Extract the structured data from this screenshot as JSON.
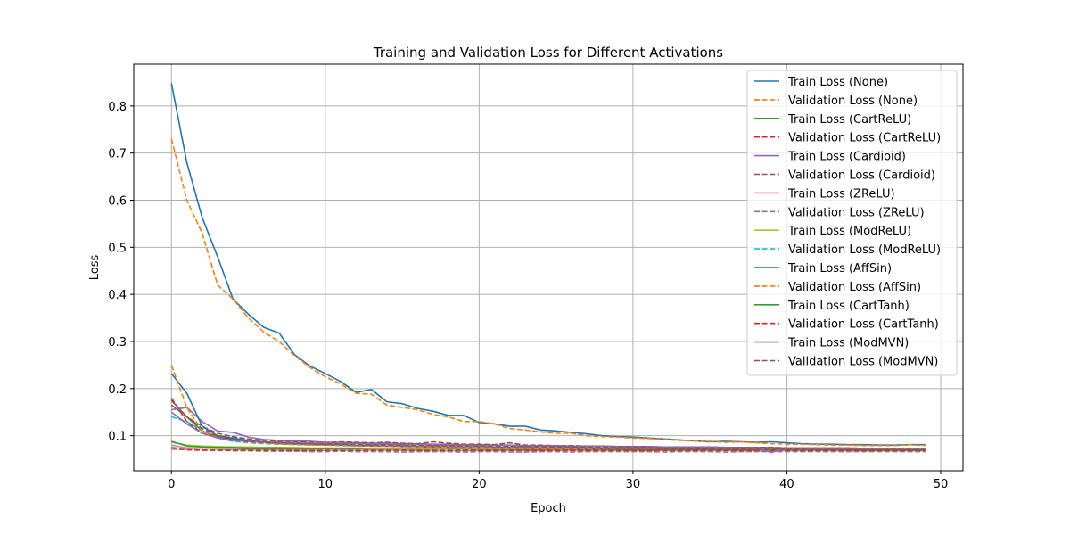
{
  "chart_data": {
    "type": "line",
    "title": "Training and Validation Loss for Different Activations",
    "xlabel": "Epoch",
    "ylabel": "Loss",
    "xlim": [
      -2.45,
      51.45
    ],
    "ylim": [
      0.0255,
      0.8887
    ],
    "xticks": [
      0,
      10,
      20,
      30,
      40,
      50
    ],
    "xtick_labels": [
      "0",
      "10",
      "20",
      "30",
      "40",
      "50"
    ],
    "yticks": [
      0.1,
      0.2,
      0.3,
      0.4,
      0.5,
      0.6,
      0.7,
      0.8
    ],
    "ytick_labels": [
      "0.1",
      "0.2",
      "0.3",
      "0.4",
      "0.5",
      "0.6",
      "0.7",
      "0.8"
    ],
    "grid": true,
    "legend_position": "upper right",
    "series": [
      {
        "name": "Train Loss (None)",
        "color": "#1f77b4",
        "dash": "solid",
        "values": [
          0.848,
          0.68,
          0.563,
          0.48,
          0.39,
          0.358,
          0.33,
          0.318,
          0.272,
          0.248,
          0.232,
          0.215,
          0.192,
          0.198,
          0.172,
          0.168,
          0.158,
          0.152,
          0.143,
          0.143,
          0.128,
          0.125,
          0.12,
          0.12,
          0.112,
          0.11,
          0.107,
          0.104,
          0.1,
          0.098,
          0.097,
          0.095,
          0.093,
          0.091,
          0.089,
          0.087,
          0.088,
          0.087,
          0.086,
          0.087,
          0.085,
          0.083,
          0.082,
          0.082,
          0.081,
          0.081,
          0.08,
          0.08,
          0.081,
          0.081
        ]
      },
      {
        "name": "Validation Loss (None)",
        "color": "#ff7f0e",
        "dash": "dashed",
        "values": [
          0.73,
          0.6,
          0.53,
          0.42,
          0.39,
          0.35,
          0.32,
          0.3,
          0.27,
          0.245,
          0.225,
          0.21,
          0.19,
          0.188,
          0.165,
          0.16,
          0.155,
          0.145,
          0.14,
          0.13,
          0.13,
          0.125,
          0.115,
          0.112,
          0.108,
          0.105,
          0.105,
          0.1,
          0.098,
          0.097,
          0.095,
          0.094,
          0.092,
          0.09,
          0.089,
          0.088,
          0.086,
          0.087,
          0.085,
          0.083,
          0.082,
          0.082,
          0.081,
          0.08,
          0.08,
          0.079,
          0.079,
          0.079,
          0.081,
          0.079
        ]
      },
      {
        "name": "Train Loss (CartReLU)",
        "color": "#2ca02c",
        "dash": "solid",
        "values": [
          0.175,
          0.14,
          0.11,
          0.098,
          0.093,
          0.09,
          0.087,
          0.085,
          0.083,
          0.082,
          0.08,
          0.08,
          0.079,
          0.078,
          0.078,
          0.077,
          0.077,
          0.076,
          0.076,
          0.076,
          0.075,
          0.075,
          0.075,
          0.074,
          0.074,
          0.074,
          0.074,
          0.073,
          0.073,
          0.073,
          0.073,
          0.072,
          0.072,
          0.072,
          0.072,
          0.072,
          0.071,
          0.071,
          0.071,
          0.071,
          0.071,
          0.071,
          0.07,
          0.07,
          0.07,
          0.07,
          0.07,
          0.07,
          0.07,
          0.07
        ]
      },
      {
        "name": "Validation Loss (CartReLU)",
        "color": "#d62728",
        "dash": "dashed",
        "values": [
          0.18,
          0.13,
          0.105,
          0.1,
          0.09,
          0.088,
          0.086,
          0.083,
          0.082,
          0.081,
          0.08,
          0.08,
          0.079,
          0.078,
          0.078,
          0.077,
          0.077,
          0.076,
          0.076,
          0.076,
          0.075,
          0.075,
          0.075,
          0.075,
          0.074,
          0.074,
          0.074,
          0.073,
          0.073,
          0.073,
          0.073,
          0.072,
          0.072,
          0.072,
          0.072,
          0.072,
          0.071,
          0.071,
          0.071,
          0.071,
          0.071,
          0.071,
          0.071,
          0.07,
          0.07,
          0.07,
          0.07,
          0.07,
          0.07,
          0.07
        ]
      },
      {
        "name": "Train Loss (Cardioid)",
        "color": "#9467bd",
        "dash": "solid",
        "values": [
          0.155,
          0.16,
          0.13,
          0.11,
          0.107,
          0.097,
          0.092,
          0.09,
          0.089,
          0.088,
          0.086,
          0.086,
          0.085,
          0.084,
          0.084,
          0.083,
          0.083,
          0.082,
          0.082,
          0.081,
          0.081,
          0.08,
          0.08,
          0.079,
          0.079,
          0.079,
          0.078,
          0.078,
          0.078,
          0.077,
          0.077,
          0.077,
          0.076,
          0.076,
          0.076,
          0.076,
          0.075,
          0.075,
          0.075,
          0.075,
          0.074,
          0.074,
          0.074,
          0.074,
          0.074,
          0.073,
          0.073,
          0.073,
          0.073,
          0.073
        ]
      },
      {
        "name": "Validation Loss (Cardioid)",
        "color": "#8c564b",
        "dash": "dashed",
        "values": [
          0.165,
          0.14,
          0.12,
          0.105,
          0.098,
          0.093,
          0.09,
          0.088,
          0.087,
          0.086,
          0.085,
          0.087,
          0.086,
          0.085,
          0.086,
          0.084,
          0.083,
          0.087,
          0.084,
          0.082,
          0.082,
          0.081,
          0.085,
          0.08,
          0.08,
          0.079,
          0.079,
          0.078,
          0.078,
          0.077,
          0.077,
          0.077,
          0.076,
          0.076,
          0.076,
          0.076,
          0.075,
          0.075,
          0.075,
          0.075,
          0.074,
          0.074,
          0.074,
          0.074,
          0.074,
          0.073,
          0.073,
          0.073,
          0.073,
          0.073
        ]
      },
      {
        "name": "Train Loss (ZReLU)",
        "color": "#e377c2",
        "dash": "solid",
        "values": [
          0.08,
          0.074,
          0.072,
          0.071,
          0.07,
          0.07,
          0.07,
          0.069,
          0.069,
          0.069,
          0.069,
          0.069,
          0.069,
          0.069,
          0.069,
          0.069,
          0.069,
          0.068,
          0.068,
          0.068,
          0.068,
          0.068,
          0.068,
          0.068,
          0.068,
          0.068,
          0.068,
          0.068,
          0.068,
          0.068,
          0.068,
          0.068,
          0.068,
          0.068,
          0.068,
          0.068,
          0.068,
          0.068,
          0.068,
          0.068,
          0.068,
          0.068,
          0.068,
          0.068,
          0.068,
          0.068,
          0.068,
          0.068,
          0.068,
          0.068
        ]
      },
      {
        "name": "Validation Loss (ZReLU)",
        "color": "#7f7f7f",
        "dash": "dashed",
        "values": [
          0.075,
          0.072,
          0.07,
          0.069,
          0.068,
          0.068,
          0.067,
          0.067,
          0.067,
          0.066,
          0.066,
          0.067,
          0.066,
          0.066,
          0.066,
          0.065,
          0.066,
          0.066,
          0.066,
          0.065,
          0.066,
          0.066,
          0.065,
          0.065,
          0.066,
          0.066,
          0.065,
          0.066,
          0.066,
          0.066,
          0.066,
          0.066,
          0.065,
          0.066,
          0.066,
          0.066,
          0.065,
          0.066,
          0.066,
          0.066,
          0.066,
          0.066,
          0.066,
          0.066,
          0.066,
          0.066,
          0.066,
          0.066,
          0.066,
          0.066
        ]
      },
      {
        "name": "Train Loss (ModReLU)",
        "color": "#bcbd22",
        "dash": "solid",
        "values": [
          0.086,
          0.08,
          0.078,
          0.077,
          0.076,
          0.076,
          0.075,
          0.075,
          0.075,
          0.074,
          0.074,
          0.074,
          0.074,
          0.073,
          0.073,
          0.073,
          0.073,
          0.073,
          0.073,
          0.072,
          0.072,
          0.072,
          0.072,
          0.072,
          0.072,
          0.072,
          0.071,
          0.071,
          0.071,
          0.071,
          0.071,
          0.071,
          0.071,
          0.071,
          0.071,
          0.07,
          0.07,
          0.07,
          0.07,
          0.07,
          0.07,
          0.07,
          0.07,
          0.07,
          0.07,
          0.07,
          0.07,
          0.07,
          0.07,
          0.07
        ]
      },
      {
        "name": "Validation Loss (ModReLU)",
        "color": "#17becf",
        "dash": "dashed",
        "values": [
          0.14,
          0.13,
          0.11,
          0.095,
          0.088,
          0.085,
          0.083,
          0.082,
          0.081,
          0.08,
          0.08,
          0.079,
          0.078,
          0.078,
          0.078,
          0.077,
          0.077,
          0.077,
          0.076,
          0.076,
          0.076,
          0.075,
          0.075,
          0.075,
          0.075,
          0.074,
          0.074,
          0.074,
          0.074,
          0.073,
          0.073,
          0.073,
          0.073,
          0.073,
          0.072,
          0.072,
          0.072,
          0.072,
          0.072,
          0.072,
          0.071,
          0.071,
          0.071,
          0.071,
          0.071,
          0.071,
          0.071,
          0.07,
          0.07,
          0.07
        ]
      },
      {
        "name": "Train Loss (AffSin)",
        "color": "#1f77b4",
        "dash": "solid",
        "values": [
          0.232,
          0.19,
          0.12,
          0.1,
          0.095,
          0.09,
          0.087,
          0.085,
          0.083,
          0.082,
          0.081,
          0.08,
          0.079,
          0.079,
          0.078,
          0.078,
          0.077,
          0.077,
          0.076,
          0.076,
          0.076,
          0.075,
          0.075,
          0.075,
          0.074,
          0.074,
          0.074,
          0.074,
          0.073,
          0.073,
          0.073,
          0.073,
          0.073,
          0.072,
          0.072,
          0.072,
          0.072,
          0.072,
          0.072,
          0.071,
          0.071,
          0.071,
          0.071,
          0.071,
          0.071,
          0.071,
          0.07,
          0.07,
          0.07,
          0.07
        ]
      },
      {
        "name": "Validation Loss (AffSin)",
        "color": "#ff7f0e",
        "dash": "dashed",
        "values": [
          0.25,
          0.16,
          0.11,
          0.095,
          0.09,
          0.087,
          0.085,
          0.083,
          0.082,
          0.081,
          0.08,
          0.08,
          0.079,
          0.078,
          0.078,
          0.077,
          0.077,
          0.077,
          0.076,
          0.076,
          0.076,
          0.075,
          0.075,
          0.075,
          0.074,
          0.074,
          0.074,
          0.074,
          0.073,
          0.073,
          0.073,
          0.073,
          0.073,
          0.072,
          0.072,
          0.072,
          0.072,
          0.072,
          0.072,
          0.071,
          0.071,
          0.071,
          0.071,
          0.071,
          0.071,
          0.071,
          0.07,
          0.07,
          0.07,
          0.07
        ]
      },
      {
        "name": "Train Loss (CartTanh)",
        "color": "#2ca02c",
        "dash": "solid",
        "values": [
          0.088,
          0.078,
          0.076,
          0.075,
          0.075,
          0.074,
          0.074,
          0.074,
          0.073,
          0.073,
          0.073,
          0.073,
          0.073,
          0.072,
          0.072,
          0.072,
          0.072,
          0.072,
          0.072,
          0.072,
          0.071,
          0.071,
          0.071,
          0.071,
          0.071,
          0.071,
          0.071,
          0.071,
          0.071,
          0.07,
          0.07,
          0.07,
          0.07,
          0.07,
          0.07,
          0.07,
          0.07,
          0.07,
          0.07,
          0.07,
          0.07,
          0.07,
          0.07,
          0.07,
          0.07,
          0.069,
          0.069,
          0.069,
          0.069,
          0.069
        ]
      },
      {
        "name": "Validation Loss (CartTanh)",
        "color": "#d62728",
        "dash": "dashed",
        "values": [
          0.072,
          0.07,
          0.069,
          0.069,
          0.069,
          0.069,
          0.069,
          0.069,
          0.069,
          0.069,
          0.069,
          0.069,
          0.069,
          0.069,
          0.069,
          0.069,
          0.069,
          0.069,
          0.069,
          0.069,
          0.069,
          0.069,
          0.069,
          0.069,
          0.069,
          0.069,
          0.069,
          0.069,
          0.069,
          0.069,
          0.069,
          0.069,
          0.069,
          0.069,
          0.069,
          0.069,
          0.069,
          0.069,
          0.069,
          0.069,
          0.069,
          0.069,
          0.069,
          0.069,
          0.069,
          0.069,
          0.069,
          0.069,
          0.069,
          0.069
        ]
      },
      {
        "name": "Train Loss (ModMVN)",
        "color": "#9467bd",
        "dash": "solid",
        "values": [
          0.15,
          0.125,
          0.105,
          0.095,
          0.09,
          0.088,
          0.087,
          0.086,
          0.085,
          0.084,
          0.084,
          0.083,
          0.083,
          0.082,
          0.082,
          0.081,
          0.081,
          0.08,
          0.08,
          0.08,
          0.079,
          0.079,
          0.079,
          0.078,
          0.078,
          0.078,
          0.077,
          0.077,
          0.077,
          0.076,
          0.076,
          0.076,
          0.076,
          0.075,
          0.075,
          0.075,
          0.075,
          0.074,
          0.074,
          0.064,
          0.074,
          0.074,
          0.073,
          0.073,
          0.073,
          0.073,
          0.073,
          0.072,
          0.072,
          0.072
        ]
      },
      {
        "name": "Validation Loss (ModMVN)",
        "color": "#8c564b",
        "dash": "dashed",
        "values": [
          0.175,
          0.14,
          0.115,
          0.1,
          0.092,
          0.088,
          0.086,
          0.085,
          0.084,
          0.083,
          0.082,
          0.082,
          0.081,
          0.08,
          0.08,
          0.079,
          0.079,
          0.079,
          0.078,
          0.078,
          0.078,
          0.077,
          0.077,
          0.077,
          0.076,
          0.076,
          0.076,
          0.076,
          0.075,
          0.075,
          0.075,
          0.075,
          0.074,
          0.074,
          0.074,
          0.074,
          0.074,
          0.073,
          0.073,
          0.073,
          0.073,
          0.073,
          0.072,
          0.072,
          0.072,
          0.072,
          0.072,
          0.072,
          0.071,
          0.071
        ]
      }
    ]
  }
}
